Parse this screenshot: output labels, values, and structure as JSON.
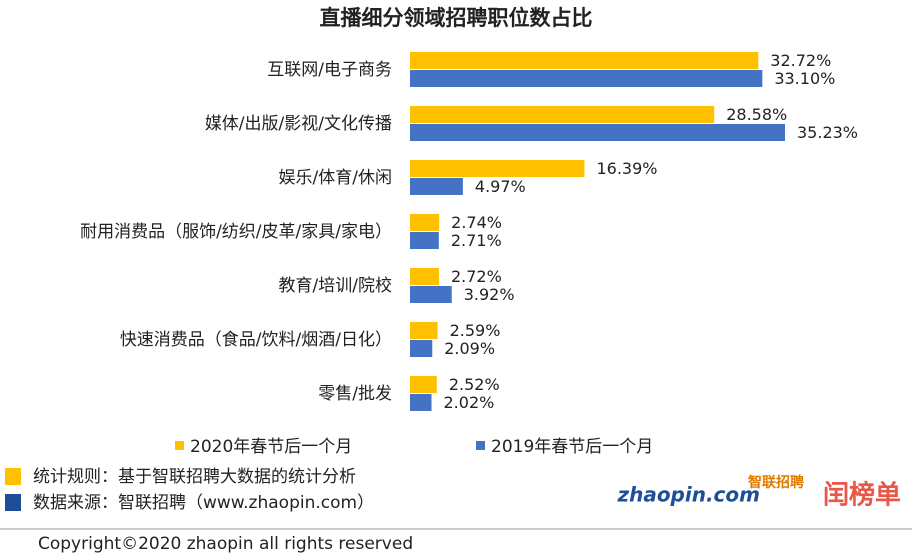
{
  "chart_data": {
    "type": "bar",
    "orientation": "horizontal",
    "title": "直播细分领域招聘职位数占比",
    "categories": [
      "互联网/电子商务",
      "媒体/出版/影视/文化传播",
      "娱乐/体育/休闲",
      "耐用消费品（服饰/纺织/皮革/家具/家电）",
      "教育/培训/院校",
      "快速消费品（食品/饮料/烟酒/日化）",
      "零售/批发"
    ],
    "series": [
      {
        "name": "2020年春节后一个月",
        "color": "#FFC000",
        "values": [
          32.72,
          28.58,
          16.39,
          2.74,
          2.72,
          2.59,
          2.52
        ],
        "value_labels": [
          "32.72%",
          "28.58%",
          "16.39%",
          "2.74%",
          "2.72%",
          "2.59%",
          "2.52%"
        ]
      },
      {
        "name": "2019年春节后一个月",
        "color": "#4472C4",
        "values": [
          33.1,
          35.23,
          4.97,
          2.71,
          3.92,
          2.09,
          2.02
        ],
        "value_labels": [
          "33.10%",
          "35.23%",
          "4.97%",
          "2.71%",
          "3.92%",
          "2.09%",
          "2.02%"
        ]
      }
    ]
  },
  "notes": [
    {
      "text": "统计规则：基于智联招聘大数据的统计分析",
      "color": "#FFC000"
    },
    {
      "text": "数据来源：智联招聘（www.zhaopin.com）",
      "color": "#1F4E99"
    }
  ],
  "logo": {
    "brand": "zhaopin.com",
    "brand_cn": "智联招聘",
    "badge": "闰榜单"
  },
  "copyright": "Copyright©2020 zhaopin all rights reserved"
}
